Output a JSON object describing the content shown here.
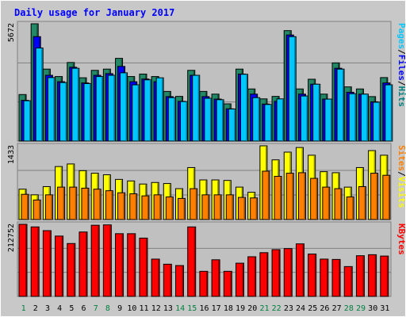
{
  "chart_data": {
    "type": "bar",
    "title": "Daily usage for January 2017",
    "days": [
      "1",
      "2",
      "3",
      "4",
      "5",
      "6",
      "7",
      "8",
      "9",
      "10",
      "11",
      "12",
      "13",
      "14",
      "15",
      "16",
      "17",
      "18",
      "19",
      "20",
      "21",
      "22",
      "23",
      "24",
      "25",
      "26",
      "27",
      "28",
      "29",
      "30",
      "31"
    ],
    "weekend_days": [
      "1",
      "7",
      "8",
      "14",
      "15",
      "21",
      "22",
      "28",
      "29"
    ],
    "panels": [
      {
        "name": "pages-files-hits",
        "max_label": "5672",
        "ylim": [
          0,
          5672
        ],
        "right_label_parts": [
          "Pages",
          "/",
          "Files",
          "/",
          "Hits"
        ],
        "right_label_colors": [
          "#00c8ff",
          "#000000",
          "#0000ff",
          "#000000",
          "#008080"
        ],
        "series": [
          {
            "name": "Hits",
            "color": "#228866",
            "values": [
              2250,
              5672,
              3480,
              3120,
              3800,
              3060,
              3420,
              3480,
              4000,
              3120,
              3240,
              3120,
              2400,
              2160,
              3420,
              2400,
              2270,
              1800,
              3480,
              2520,
              2040,
              2160,
              5340,
              2520,
              2990,
              2270,
              3780,
              2620,
              2520,
              2150,
              3070
            ]
          },
          {
            "name": "Files",
            "color": "#0000ff",
            "values": [
              1970,
              5050,
              3180,
              2870,
              3570,
              2810,
              3180,
              3260,
              3610,
              2870,
              3000,
              2870,
              2150,
              1920,
              3180,
              2150,
              2030,
              1560,
              3240,
              2270,
              1790,
              1920,
              5130,
              2270,
              2750,
              2030,
              3520,
              2360,
              2270,
              1900,
              2810
            ]
          },
          {
            "name": "Pages",
            "color": "#00c8ff",
            "values": [
              1950,
              4500,
              3070,
              2830,
              3520,
              2780,
              3120,
              3180,
              3300,
              2720,
              2960,
              3060,
              2100,
              1910,
              3180,
              2070,
              2000,
              1550,
              3230,
              2100,
              1770,
              2040,
              5050,
              2180,
              2750,
              2030,
              3480,
              2290,
              2270,
              1880,
              2720
            ]
          }
        ]
      },
      {
        "name": "sites-visits",
        "max_label": "1433",
        "ylim": [
          0,
          1433
        ],
        "right_label_parts": [
          "Sites",
          "/",
          "Visits"
        ],
        "right_label_colors": [
          "#ff8000",
          "#000000",
          "#ffff00"
        ],
        "series": [
          {
            "name": "Visits",
            "color": "#ffff00",
            "values": [
              590,
              480,
              640,
              1030,
              1080,
              950,
              900,
              870,
              780,
              750,
              690,
              720,
              700,
              600,
              1010,
              770,
              770,
              760,
              630,
              530,
              1433,
              1160,
              1310,
              1400,
              1250,
              930,
              910,
              630,
              1010,
              1340,
              1250
            ]
          },
          {
            "name": "Sites",
            "color": "#ff8000",
            "values": [
              490,
              380,
              480,
              630,
              630,
              610,
              590,
              560,
              520,
              500,
              460,
              480,
              440,
              410,
              600,
              480,
              480,
              480,
              430,
              420,
              940,
              840,
              900,
              910,
              800,
              630,
              600,
              440,
              640,
              900,
              860
            ]
          }
        ]
      },
      {
        "name": "kbytes",
        "max_label": "212752",
        "ylim": [
          0,
          212752
        ],
        "right_label_parts": [
          "KBytes"
        ],
        "right_label_colors": [
          "#ff0000"
        ],
        "series": [
          {
            "name": "KBytes",
            "color": "#ff0000",
            "values": [
              212752,
              205000,
              194000,
              178000,
              156000,
              190000,
              210000,
              211000,
              185000,
              185000,
              172000,
              110000,
              95000,
              91000,
              205000,
              74000,
              108000,
              74000,
              98000,
              117000,
              129000,
              138000,
              141000,
              155000,
              125000,
              110000,
              109000,
              88000,
              120000,
              123000,
              119000
            ]
          }
        ]
      }
    ]
  }
}
